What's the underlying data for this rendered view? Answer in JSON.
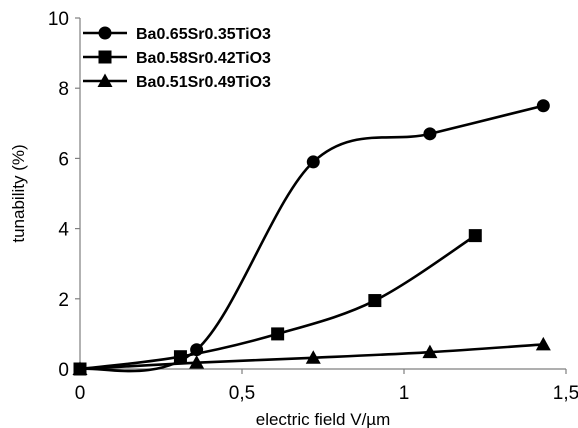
{
  "chart_data": {
    "type": "line",
    "title": "",
    "xlabel": "electric field V/µm",
    "ylabel": "tunability (%)",
    "xlim": [
      0,
      1.5
    ],
    "ylim": [
      0,
      10
    ],
    "xticks": [
      0,
      0.5,
      1,
      1.5
    ],
    "xtick_labels": [
      "0",
      "0,5",
      "1",
      "1,5"
    ],
    "yticks": [
      0,
      2,
      4,
      6,
      8,
      10
    ],
    "ytick_labels": [
      "0",
      "2",
      "4",
      "6",
      "8",
      "10"
    ],
    "grid": false,
    "legend_position": "top-left",
    "smoothed": true,
    "series": [
      {
        "name": "Ba0.65Sr0.35TiO3",
        "marker": "circle",
        "color": "#000000",
        "x": [
          0,
          0.36,
          0.72,
          1.08,
          1.43
        ],
        "y": [
          0,
          0.55,
          5.9,
          6.7,
          7.5
        ]
      },
      {
        "name": "Ba0.58Sr0.42TiO3",
        "marker": "square",
        "color": "#000000",
        "x": [
          0,
          0.31,
          0.61,
          0.91,
          1.22
        ],
        "y": [
          0,
          0.35,
          1.0,
          1.95,
          3.8
        ]
      },
      {
        "name": "Ba0.51Sr0.49TiO3",
        "marker": "triangle",
        "color": "#000000",
        "x": [
          0,
          0.36,
          0.72,
          1.08,
          1.43
        ],
        "y": [
          0,
          0.18,
          0.32,
          0.48,
          0.7
        ]
      }
    ]
  }
}
